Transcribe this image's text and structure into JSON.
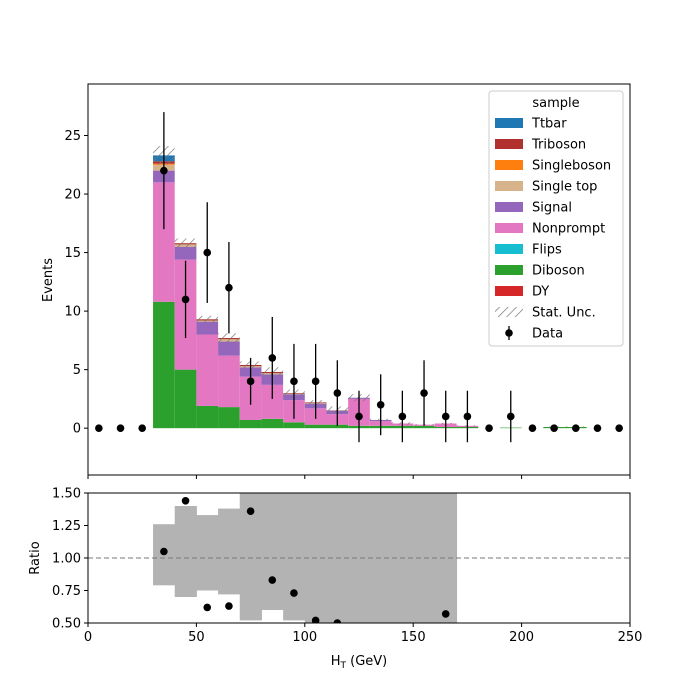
{
  "chart_data": [
    {
      "type": "bar",
      "stacked": true,
      "histogram": true,
      "bin_edges": [
        0,
        10,
        20,
        30,
        40,
        50,
        60,
        70,
        80,
        90,
        100,
        110,
        120,
        130,
        140,
        150,
        160,
        170,
        180,
        190,
        200,
        210,
        220,
        230,
        240,
        250
      ],
      "xlim": [
        0,
        250
      ],
      "ylim": [
        -4,
        29.4
      ],
      "ylabel": "Events",
      "yticks": [
        0,
        5,
        10,
        15,
        20,
        25
      ],
      "series": [
        {
          "name": "Diboson",
          "color": "#2ca02c",
          "values": [
            0,
            0,
            0,
            10.8,
            5.0,
            1.9,
            1.8,
            0.7,
            0.8,
            0.5,
            0.3,
            0.3,
            0.2,
            0.2,
            0.2,
            0.2,
            0.1,
            0.1,
            0,
            0.05,
            0,
            0.1,
            0.1,
            0,
            0
          ]
        },
        {
          "name": "Nonprompt",
          "color": "#e377c2",
          "values": [
            0,
            0,
            0,
            10.2,
            9.4,
            6.1,
            4.4,
            3.7,
            2.9,
            1.9,
            1.4,
            0.9,
            2.3,
            0.4,
            0.2,
            0.1,
            0.3,
            0.1,
            0,
            0,
            0,
            0,
            0,
            0,
            0
          ]
        },
        {
          "name": "Signal",
          "color": "#9467bd",
          "values": [
            0,
            0,
            0,
            1.0,
            1.1,
            1.1,
            1.2,
            0.8,
            0.9,
            0.5,
            0.4,
            0.3,
            0.1,
            0.1,
            0,
            0,
            0,
            0,
            0,
            0,
            0,
            0,
            0,
            0,
            0
          ]
        },
        {
          "name": "Single top",
          "color": "#d6b38a",
          "values": [
            0,
            0,
            0,
            0.5,
            0.2,
            0.1,
            0.2,
            0.1,
            0.1,
            0.05,
            0.05,
            0.05,
            0,
            0,
            0,
            0,
            0,
            0,
            0,
            0,
            0,
            0,
            0,
            0,
            0
          ]
        },
        {
          "name": "Singleboson",
          "color": "#ff7f0e",
          "values": [
            0,
            0,
            0,
            0.1,
            0,
            0,
            0,
            0,
            0,
            0,
            0,
            0,
            0,
            0,
            0,
            0,
            0,
            0,
            0,
            0,
            0,
            0,
            0,
            0,
            0
          ]
        },
        {
          "name": "Triboson",
          "color": "#b0302d",
          "values": [
            0,
            0,
            0,
            0.2,
            0.1,
            0.1,
            0.1,
            0.1,
            0.1,
            0.05,
            0.05,
            0,
            0,
            0,
            0,
            0,
            0,
            0,
            0,
            0,
            0,
            0,
            0,
            0,
            0
          ]
        },
        {
          "name": "Ttbar",
          "color": "#1f77b4",
          "values": [
            0,
            0,
            0,
            0.5,
            0,
            0,
            0,
            0,
            0,
            0,
            0,
            0,
            0,
            0,
            0,
            0,
            0,
            0,
            0,
            0,
            0,
            0,
            0,
            0,
            0
          ]
        },
        {
          "name": "Flips",
          "color": "#17becf",
          "values": [
            0,
            0,
            0,
            0,
            0,
            0,
            0,
            0,
            0,
            0,
            0,
            0,
            0,
            0,
            0,
            0,
            0,
            0,
            0,
            0,
            0,
            0,
            0,
            0,
            0
          ]
        },
        {
          "name": "DY",
          "color": "#d62728",
          "values": [
            0,
            0,
            0,
            0,
            0,
            0,
            0,
            0,
            0,
            0,
            0,
            0,
            0,
            0,
            0,
            0,
            0,
            0,
            0,
            0,
            0,
            0,
            0,
            0,
            0
          ]
        }
      ],
      "stat_unc": [
        0,
        0,
        0,
        0.8,
        0.4,
        0.3,
        0.4,
        0.3,
        0.4,
        0.3,
        0.2,
        0.3,
        0.3,
        0.1,
        0.1,
        0.05,
        0.05,
        0.05,
        0,
        0,
        0,
        0.05,
        0.05,
        0,
        0
      ],
      "data": {
        "name": "Data",
        "x": [
          5,
          15,
          25,
          35,
          45,
          55,
          65,
          75,
          85,
          95,
          105,
          115,
          125,
          135,
          145,
          155,
          165,
          175,
          185,
          195,
          205,
          215,
          225,
          235,
          245
        ],
        "y": [
          0,
          0,
          0,
          22,
          11,
          15,
          12,
          4,
          6,
          4,
          4,
          3,
          1,
          2,
          1,
          3,
          1,
          1,
          0,
          1,
          0,
          0,
          0,
          0,
          0
        ],
        "yerr": [
          0,
          0,
          0,
          5,
          3.3,
          4.3,
          3.9,
          2.0,
          3.5,
          3.2,
          3.2,
          2.8,
          2.2,
          2.6,
          2.2,
          2.8,
          2.2,
          2.2,
          0,
          2.2,
          0,
          0,
          0,
          0,
          0
        ]
      },
      "legend": {
        "title": "sample",
        "placement": "top-right",
        "entries": [
          "Ttbar",
          "Triboson",
          "Singleboson",
          "Single top",
          "Signal",
          "Nonprompt",
          "Flips",
          "Diboson",
          "DY",
          "Stat. Unc.",
          "Data"
        ]
      }
    },
    {
      "type": "scatter",
      "xlabel": "H_T (GeV)",
      "ylabel": "Ratio",
      "xlim": [
        0,
        250
      ],
      "ylim": [
        0.5,
        1.5
      ],
      "xticks": [
        0,
        50,
        100,
        150,
        200,
        250
      ],
      "yticks": [
        "0.50",
        "0.75",
        "1.00",
        "1.25",
        "1.50"
      ],
      "reference_line": 1.0,
      "band_color": "#b3b3b3",
      "band": {
        "bin_edges": [
          30,
          40,
          50,
          60,
          70,
          80,
          90,
          100,
          110,
          120,
          130,
          140,
          150,
          160,
          170
        ],
        "low": [
          0.79,
          0.7,
          0.75,
          0.72,
          0.52,
          0.6,
          0.52,
          0.5,
          0.5,
          0.5,
          0.5,
          0.5,
          0.5,
          0.5
        ],
        "high": [
          1.26,
          1.4,
          1.33,
          1.38,
          1.5,
          1.5,
          1.5,
          1.5,
          1.5,
          1.5,
          1.5,
          1.5,
          1.5,
          1.5
        ]
      },
      "points": {
        "x": [
          35,
          45,
          55,
          65,
          75,
          85,
          95,
          105,
          115,
          165
        ],
        "y": [
          1.05,
          1.44,
          0.62,
          0.63,
          1.36,
          0.83,
          0.73,
          0.52,
          0.5,
          0.57
        ]
      }
    }
  ]
}
